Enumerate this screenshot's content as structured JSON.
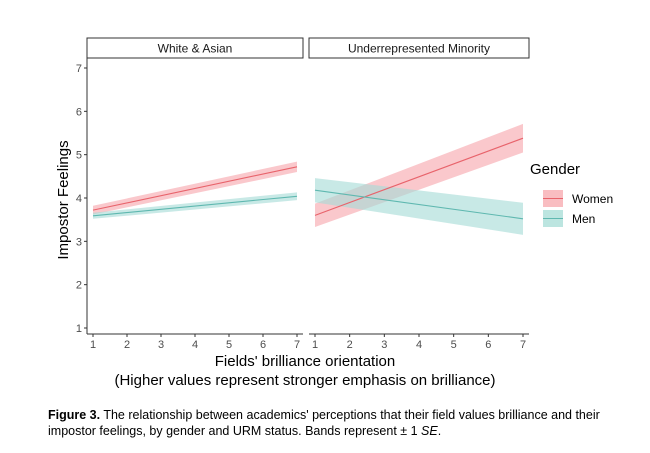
{
  "chart_data": {
    "type": "line",
    "facets": [
      {
        "label": "White & Asian",
        "series": [
          {
            "name": "Women",
            "x": [
              1,
              7
            ],
            "y": [
              3.72,
              4.72
            ],
            "se_lower": [
              3.62,
              4.6
            ],
            "se_upper": [
              3.82,
              4.84
            ]
          },
          {
            "name": "Men",
            "x": [
              1,
              7
            ],
            "y": [
              3.59,
              4.04
            ],
            "se_lower": [
              3.52,
              3.95
            ],
            "se_upper": [
              3.66,
              4.13
            ]
          }
        ]
      },
      {
        "label": "Underrepresented Minority",
        "series": [
          {
            "name": "Women",
            "x": [
              1,
              7
            ],
            "y": [
              3.6,
              5.38
            ],
            "se_lower": [
              3.33,
              5.05
            ],
            "se_upper": [
              3.87,
              5.71
            ]
          },
          {
            "name": "Men",
            "x": [
              1,
              7
            ],
            "y": [
              4.18,
              3.52
            ],
            "se_lower": [
              3.9,
              3.15
            ],
            "se_upper": [
              4.46,
              3.89
            ]
          }
        ]
      }
    ],
    "xlabel": "Fields' brilliance orientation",
    "xlabel_line2": "(Higher values represent stronger emphasis on brilliance)",
    "ylabel": "Impostor Feelings",
    "xlim": [
      1,
      7
    ],
    "ylim": [
      1,
      7
    ],
    "xticks": [
      "1",
      "2",
      "3",
      "4",
      "5",
      "6",
      "7"
    ],
    "yticks": [
      "1",
      "2",
      "3",
      "4",
      "5",
      "6",
      "7"
    ],
    "legend": {
      "title": "Gender",
      "items": [
        "Women",
        "Men"
      ],
      "position": "right"
    },
    "grid": false,
    "colors": {
      "Women": "#e8636b",
      "Men": "#5fb8b0"
    },
    "band_colors": {
      "Women": "#f7a7ac",
      "Men": "#a6dcd6"
    }
  },
  "caption": {
    "label": "Figure 3.",
    "text": " The relationship between academics' perceptions that their field values brilliance and their impostor feelings, by gender and URM status. Bands represent ± 1 ",
    "se": "SE",
    "end": "."
  }
}
